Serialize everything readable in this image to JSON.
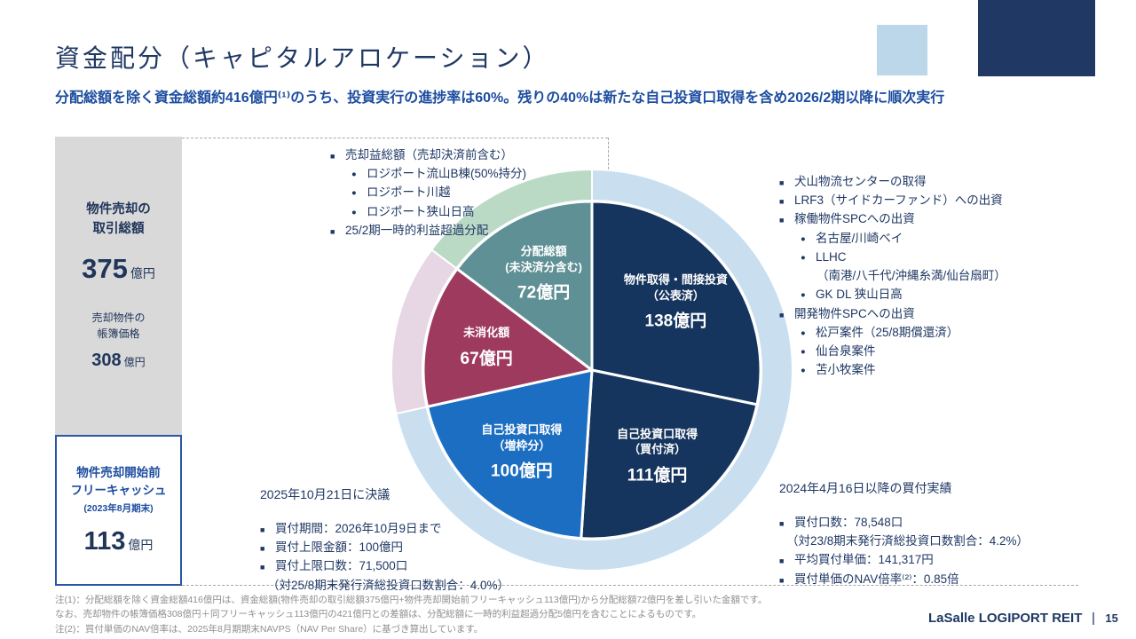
{
  "page": {
    "title": "資金配分（キャピタルアロケーション）",
    "subtitle": "分配総額を除く資金総額約416億円⁽¹⁾のうち、投資実行の進捗率は60%。残りの40%は新たな自己投資口取得を含め2026/2期以降に順次実行",
    "footer": {
      "brand": "LaSalle LOGIPORT REIT",
      "page_number": "15"
    },
    "colors": {
      "navy": "#1f3864",
      "blue": "#1c4da0",
      "light_blue": "#bcd7ea",
      "gray_box": "#d9d9d9"
    }
  },
  "left_panel": {
    "sale_box": {
      "title": "物件売却の\n取引総額",
      "value": "375",
      "unit": "億円",
      "sub_title": "売却物件の\n帳簿価格",
      "sub_value": "308",
      "sub_unit": "億円"
    },
    "cash_box": {
      "title": "物件売却開始前\nフリーキャッシュ",
      "period": "(2023年8月期末)",
      "value": "113",
      "unit": "億円"
    }
  },
  "notes": {
    "sale_gains": {
      "items": [
        {
          "level": 1,
          "text": "売却益総額（売却決済前含む）"
        },
        {
          "level": 2,
          "text": "ロジポート流山B棟(50%持分)"
        },
        {
          "level": 2,
          "text": "ロジポート川越"
        },
        {
          "level": 2,
          "text": "ロジポート狭山日高"
        },
        {
          "level": 1,
          "text": "25/2期一時的利益超過分配"
        }
      ]
    },
    "investments": {
      "items": [
        {
          "level": 1,
          "text": "犬山物流センターの取得"
        },
        {
          "level": 1,
          "text": "LRF3（サイドカーファンド）への出資"
        },
        {
          "level": 1,
          "text": "稼働物件SPCへの出資"
        },
        {
          "level": 2,
          "text": "名古屋/川崎ベイ"
        },
        {
          "level": 2,
          "text": "LLHC"
        },
        {
          "level": 3,
          "text": "（南港/八千代/沖縄糸満/仙台扇町）"
        },
        {
          "level": 2,
          "text": "GK DL 狭山日高"
        },
        {
          "level": 1,
          "text": "開発物件SPCへの出資"
        },
        {
          "level": 2,
          "text": "松戸案件（25/8期償還済）"
        },
        {
          "level": 2,
          "text": "仙台泉案件"
        },
        {
          "level": 2,
          "text": "苫小牧案件"
        }
      ]
    },
    "buyback_resolution": {
      "header": "2025年10月21日に決議",
      "items": [
        {
          "level": 1,
          "text": "買付期間：2026年10月9日まで"
        },
        {
          "level": 1,
          "text": "買付上限金額：100億円"
        },
        {
          "level": 1,
          "text": "買付上限口数：71,500口"
        },
        {
          "level": 0,
          "text": "（対25/8期末発行済総投資口数割合：4.0%）"
        }
      ]
    },
    "buyback_results": {
      "header": "2024年4月16日以降の買付実績",
      "items": [
        {
          "level": 1,
          "text": "買付口数：78,548口"
        },
        {
          "level": 0,
          "text": "（対23/8期末発行済総投資口数割合：4.2%）"
        },
        {
          "level": 1,
          "text": "平均買付単価：141,317円"
        },
        {
          "level": 1,
          "text": "買付単価のNAV倍率⁽²⁾：0.85倍"
        }
      ]
    }
  },
  "footnotes": [
    "注(1)：分配総額を除く資金総額416億円は、資金総額(物件売却の取引総額375億円+物件売却開始前フリーキャッシュ113億円)から分配総額72億円を差し引いた金額です。",
    "なお、売却物件の帳簿価格308億円＋同フリーキャッシュ113億円の421億円との差額は、分配総額に一時的利益超過分配5億円を含むことによるものです。",
    "注(2)：買付単価のNAV倍率は、2025年8月期期末NAVPS（NAV Per Share）に基づき算出しています。"
  ],
  "chart_data": {
    "type": "pie",
    "unit": "億円",
    "title": "資金配分（キャピタルアロケーション）",
    "legend_position": "none",
    "start_angle_deg": 0,
    "slices": [
      {
        "name": [
          "物件取得・間接投資",
          "（公表済）"
        ],
        "value": 138,
        "value_label": "138億円",
        "color": "#16355e",
        "group": "invested"
      },
      {
        "name": [
          "自己投資口取得",
          "（買付済）"
        ],
        "value": 111,
        "value_label": "111億円",
        "color": "#16355e",
        "group": "invested"
      },
      {
        "name": [
          "自己投資口取得",
          "（増枠分）"
        ],
        "value": 100,
        "value_label": "100億円",
        "color": "#1c6ec2",
        "group": "invested"
      },
      {
        "name": [
          "未消化額"
        ],
        "value": 67,
        "value_label": "67億円",
        "color": "#9e3a5e",
        "group": "unexecuted"
      },
      {
        "name": [
          "分配総額",
          "(未決済分含む)"
        ],
        "value": 72,
        "value_label": "72億円",
        "color": "#5f9095",
        "group": "distribution"
      }
    ],
    "ring_groups": [
      {
        "group": "invested",
        "color": "#c9dff0"
      },
      {
        "group": "unexecuted",
        "color": "#e7d6e4"
      },
      {
        "group": "distribution",
        "color": "#bbdac6"
      }
    ]
  }
}
